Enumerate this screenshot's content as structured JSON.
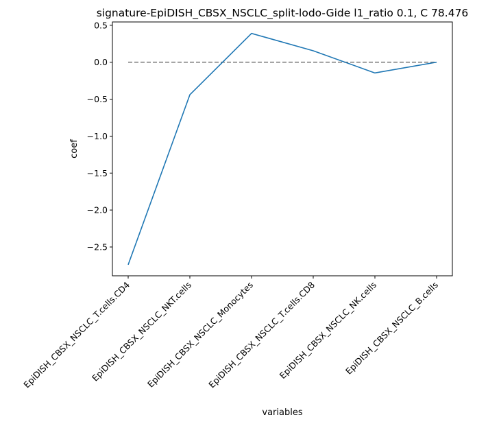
{
  "chart_data": {
    "type": "line",
    "title": "signature-EpiDISH_CBSX_NSCLC_split-lodo-Gide l1_ratio 0.1, C 78.476",
    "xlabel": "variables",
    "ylabel": "coef",
    "categories": [
      "EpiDISH_CBSX_NSCLC_T.cells.CD4",
      "EpiDISH_CBSX_NSCLC_NKT.cells",
      "EpiDISH_CBSX_NSCLC_Monocytes",
      "EpiDISH_CBSX_NSCLC_T.cells.CD8",
      "EpiDISH_CBSX_NSCLC_NK.cells",
      "EpiDISH_CBSX_NSCLC_B.cells"
    ],
    "series": [
      {
        "values": [
          -2.74,
          -0.44,
          0.39,
          0.155,
          -0.145,
          0.0
        ],
        "color": "#1f77b4"
      }
    ],
    "reference_line": {
      "y": 0.0,
      "style": "dashed",
      "color": "#808080"
    },
    "ylim": [
      -2.89,
      0.545
    ],
    "yticks": [
      0.5,
      0.0,
      -0.5,
      -1.0,
      -1.5,
      -2.0,
      -2.5
    ],
    "ytick_labels": [
      "0.5",
      "0.0",
      "−0.5",
      "−1.0",
      "−1.5",
      "−2.0",
      "−2.5"
    ],
    "grid": false,
    "legend": "none"
  }
}
